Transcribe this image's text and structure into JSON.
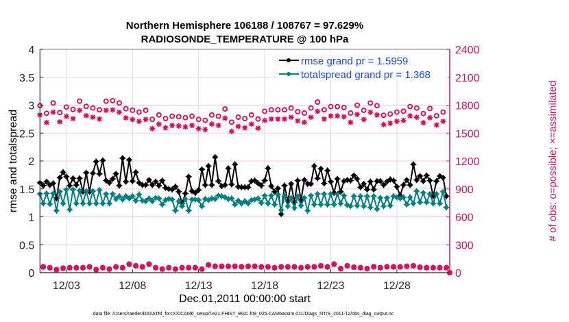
{
  "chart_data": {
    "type": "line",
    "title": "Northern Hemisphere 106188 / 108767 = 97.629%",
    "subtitle": "RADIOSONDE_TEMPERATURE @ 100 hPa",
    "xlabel": "Dec.01,2011 00:00:00 start",
    "ylabel": "rmse and totalspread",
    "ylabel_right": "# of obs: o=possible; ×=assimilated",
    "footnote": "data file: /Users/raeder/DAI/ATM_forcXX/CAM6_setup/f.e21.FHIST_BGC.f09_025.CAM6assim.011/Diags_NTrS_2011-12/obs_diag_output.nc",
    "x_units": "days since Dec.01,2011 00:00:00",
    "xlim": [
      0,
      31
    ],
    "x_step_days": 0.25,
    "xticks": [
      2,
      7,
      12,
      17,
      22,
      27
    ],
    "xtick_labels": [
      "12/03",
      "12/08",
      "12/13",
      "12/18",
      "12/23",
      "12/28"
    ],
    "ylim": [
      0,
      4
    ],
    "yticks": [
      "0",
      "0.5",
      "1",
      "1.5",
      "2",
      "2.5",
      "3",
      "3.5",
      "4"
    ],
    "ylim_right": [
      0,
      2400
    ],
    "yticks_right": [
      "0",
      "300",
      "600",
      "900",
      "1200",
      "1500",
      "1800",
      "2100",
      "2400"
    ],
    "grid": true,
    "legend_position": "top-right",
    "colors": {
      "rmse": "#000000",
      "totalspread": "#008080",
      "counts": "#d4145a",
      "legend_text": "#1746f0"
    },
    "series": [
      {
        "name": "rmse grand pr = 1.5959",
        "key": "rmse",
        "values": [
          1.61,
          1.56,
          1.63,
          1.57,
          1.6,
          1.33,
          1.7,
          1.8,
          1.72,
          1.56,
          1.69,
          1.57,
          1.69,
          1.45,
          1.79,
          1.45,
          1.78,
          1.99,
          1.77,
          2.01,
          1.65,
          1.61,
          1.68,
          1.77,
          1.56,
          2.05,
          1.63,
          2.02,
          1.64,
          1.8,
          1.61,
          1.57,
          1.57,
          1.66,
          1.57,
          1.63,
          1.56,
          1.65,
          1.52,
          1.5,
          1.49,
          1.54,
          1.45,
          1.24,
          1.42,
          1.72,
          1.46,
          1.43,
          1.48,
          1.85,
          1.57,
          1.91,
          1.57,
          2.07,
          1.64,
          1.55,
          1.57,
          1.87,
          1.58,
          1.94,
          1.54,
          1.53,
          1.53,
          1.53,
          1.64,
          1.65,
          1.6,
          1.56,
          1.65,
          1.87,
          1.55,
          1.45,
          1.51,
          1.05,
          1.56,
          1.28,
          1.59,
          1.26,
          1.65,
          1.3,
          1.66,
          1.59,
          1.59,
          1.91,
          1.69,
          1.86,
          1.6,
          1.83,
          1.63,
          1.43,
          1.68,
          1.45,
          1.64,
          1.66,
          1.65,
          1.74,
          1.68,
          1.53,
          1.59,
          1.49,
          1.63,
          1.49,
          1.64,
          1.64,
          1.57,
          1.63,
          1.67,
          1.65,
          1.54,
          1.38,
          1.57,
          1.66,
          1.57,
          1.94,
          1.66,
          1.73,
          1.64,
          1.74,
          1.65,
          1.37,
          1.64,
          1.73,
          1.7,
          1.37
        ]
      },
      {
        "name": "totalspread grand pr = 1.368",
        "key": "totalspread",
        "values": [
          1.41,
          1.24,
          1.42,
          1.23,
          1.42,
          1.11,
          1.45,
          1.24,
          1.49,
          1.13,
          1.49,
          1.24,
          1.47,
          1.24,
          1.46,
          1.24,
          1.46,
          1.24,
          1.48,
          1.24,
          1.41,
          1.24,
          1.41,
          1.32,
          1.37,
          1.31,
          1.37,
          1.33,
          1.37,
          1.29,
          1.4,
          1.29,
          1.28,
          1.33,
          1.28,
          1.34,
          1.33,
          1.22,
          1.3,
          1.32,
          1.31,
          1.11,
          1.28,
          1.19,
          1.32,
          1.11,
          1.31,
          1.31,
          1.3,
          1.19,
          1.32,
          1.3,
          1.33,
          1.32,
          1.38,
          1.37,
          1.35,
          1.32,
          1.33,
          1.22,
          1.29,
          1.24,
          1.28,
          1.24,
          1.3,
          1.31,
          1.33,
          1.25,
          1.38,
          1.24,
          1.38,
          1.22,
          1.4,
          1.12,
          1.37,
          1.19,
          1.34,
          1.16,
          1.37,
          1.2,
          1.34,
          1.11,
          1.38,
          1.22,
          1.41,
          1.22,
          1.41,
          1.22,
          1.41,
          1.22,
          1.41,
          1.24,
          1.38,
          1.21,
          1.19,
          1.37,
          1.2,
          1.37,
          1.19,
          1.37,
          1.17,
          1.37,
          1.14,
          1.34,
          1.19,
          1.34,
          1.2,
          1.37,
          1.35,
          1.33,
          1.35,
          1.22,
          1.35,
          1.24,
          1.46,
          1.26,
          1.43,
          1.26,
          1.41,
          1.24,
          1.41,
          1.24,
          1.45,
          1.17
        ]
      }
    ],
    "counts": {
      "note_times": "00Z/12Z values (days 0,0.5,...) and 06Z/18Z values (days 0.25,0.75,...,31)",
      "possible_main": [
        1772,
        1691,
        1801,
        1698,
        1757,
        1732,
        1821,
        1765,
        1747,
        1728,
        1821,
        1826,
        1801,
        1740,
        1723,
        1703,
        1723,
        1625,
        1673,
        1634,
        1659,
        1654,
        1644,
        1659,
        1625,
        1615,
        1673,
        1659,
        1737,
        1595,
        1649,
        1634,
        1673,
        1629,
        1713,
        1728,
        1728,
        1728,
        1747,
        1708,
        1693,
        1747,
        1811,
        1728,
        1762,
        1762,
        1752,
        1693,
        1777,
        1723,
        1801,
        1772,
        1669,
        1683,
        1703,
        1713,
        1762,
        1747,
        1688,
        1742,
        1664,
        1703
      ],
      "assimilated_main": [
        1717,
        1636,
        1746,
        1643,
        1702,
        1677,
        1766,
        1710,
        1692,
        1673,
        1766,
        1771,
        1746,
        1685,
        1668,
        1648,
        1668,
        1570,
        1618,
        1579,
        1604,
        1599,
        1589,
        1604,
        1570,
        1560,
        1618,
        1604,
        1682,
        1540,
        1594,
        1579,
        1618,
        1574,
        1658,
        1673,
        1673,
        1673,
        1692,
        1653,
        1638,
        1692,
        1756,
        1673,
        1707,
        1707,
        1697,
        1638,
        1722,
        1668,
        1746,
        1717,
        1614,
        1628,
        1648,
        1658,
        1707,
        1692,
        1633,
        1687,
        1609,
        1648
      ],
      "possible_off": [
        64,
        55,
        34,
        50,
        55,
        55,
        55,
        64,
        34,
        55,
        40,
        64,
        55,
        93,
        75,
        64,
        93,
        55,
        40,
        55,
        40,
        55,
        55,
        55,
        40,
        85,
        70,
        70,
        70,
        70,
        65,
        70,
        70,
        64,
        64,
        55,
        64,
        64,
        64,
        55,
        64,
        64,
        75,
        64,
        93,
        45,
        75,
        60,
        55,
        45,
        65,
        55,
        65,
        64,
        64,
        70,
        75,
        60,
        55,
        55,
        55,
        55,
        0
      ],
      "assimilated_off": [
        59,
        50,
        29,
        45,
        50,
        50,
        50,
        59,
        29,
        50,
        35,
        59,
        50,
        88,
        70,
        59,
        88,
        50,
        35,
        50,
        35,
        50,
        50,
        50,
        35,
        80,
        65,
        65,
        65,
        65,
        60,
        65,
        65,
        59,
        59,
        50,
        59,
        59,
        59,
        50,
        59,
        59,
        70,
        59,
        88,
        40,
        70,
        55,
        50,
        40,
        60,
        50,
        60,
        59,
        59,
        65,
        70,
        55,
        50,
        50,
        50,
        50,
        0
      ]
    }
  }
}
